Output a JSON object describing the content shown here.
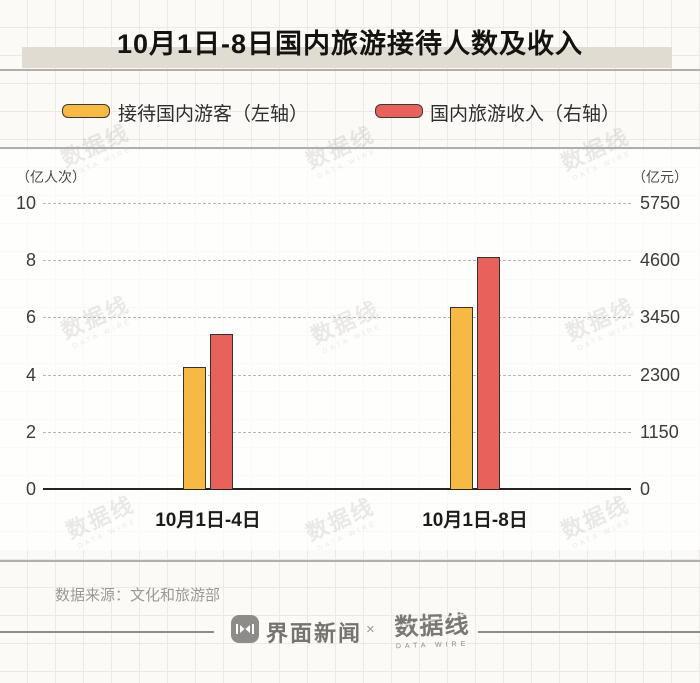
{
  "title": "10月1日-8日国内旅游接待人数及收入",
  "legend": [
    {
      "label": "接待国内游客（左轴）",
      "color": "#F6B944"
    },
    {
      "label": "国内旅游收入（右轴）",
      "color": "#E8615A"
    }
  ],
  "left_axis": {
    "unit": "（亿人次）",
    "ticks": [
      10,
      8,
      6,
      4,
      2,
      0
    ],
    "max": 10
  },
  "right_axis": {
    "unit": "（亿元）",
    "ticks": [
      5750,
      4600,
      3450,
      2300,
      1150,
      0
    ],
    "max": 5750
  },
  "chart_data": {
    "type": "bar",
    "title": "10月1日-8日国内旅游接待人数及收入",
    "categories": [
      "10月1日-4日",
      "10月1日-8日"
    ],
    "series": [
      {
        "name": "接待国内游客（左轴）",
        "axis": "left",
        "unit": "亿人次",
        "color": "#F6B944",
        "values": [
          4.25,
          6.37
        ]
      },
      {
        "name": "国内旅游收入（右轴）",
        "axis": "right",
        "unit": "亿元",
        "color": "#E8615A",
        "values": [
          3120,
          4666
        ]
      }
    ],
    "left_ylim": [
      0,
      10
    ],
    "right_ylim": [
      0,
      5750
    ],
    "grid": "dashed-horizontal",
    "legend_position": "top"
  },
  "source": "数据来源：文化和旅游部",
  "footer": {
    "brand_left": "界面新闻",
    "separator": "×",
    "brand_right": "数据线",
    "brand_right_sub": "DATA WIRE"
  },
  "watermark": {
    "text": "数据线",
    "sub": "DATA WIRE"
  }
}
